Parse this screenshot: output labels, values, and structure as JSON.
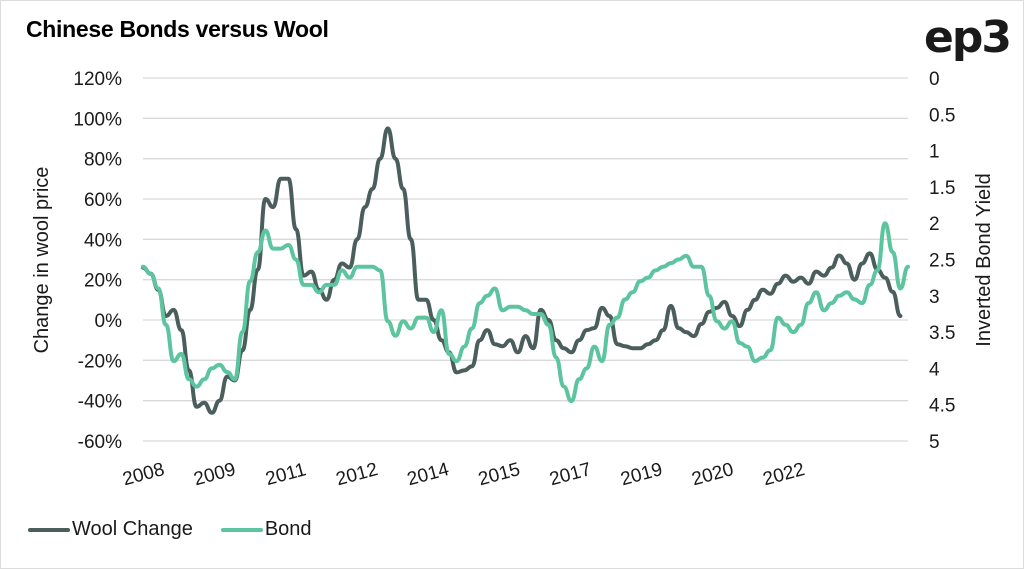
{
  "chart_data": {
    "type": "line",
    "title": "Chinese Bonds versus Wool",
    "logo_text": "ep3",
    "ylabel_left": "Change in wool price",
    "ylabel_right": "Inverted Bond Yield",
    "ylim_left": [
      -60,
      120
    ],
    "ylim_right": [
      5,
      0
    ],
    "left_ticks": [
      "120%",
      "100%",
      "80%",
      "60%",
      "40%",
      "20%",
      "0%",
      "-20%",
      "-40%",
      "-60%"
    ],
    "right_ticks": [
      "0",
      "0.5",
      "1",
      "1.5",
      "2",
      "2.5",
      "3",
      "3.5",
      "4",
      "4.5",
      "5"
    ],
    "x_tick_labels": [
      "2008",
      "2009",
      "2011",
      "2012",
      "2014",
      "2015",
      "2017",
      "2019",
      "2020",
      "2022"
    ],
    "x_range": [
      0,
      100
    ],
    "x_tick_positions": [
      0,
      9.3,
      18.6,
      27.9,
      37.2,
      46.5,
      55.8,
      65.1,
      74.4,
      83.7
    ],
    "grid": true,
    "legend_position": "bottom-left",
    "series": [
      {
        "name": "Wool Change",
        "axis": "left",
        "color": "#4a5e5c",
        "points": [
          [
            0,
            26
          ],
          [
            1,
            23
          ],
          [
            2,
            15
          ],
          [
            3,
            2
          ],
          [
            4,
            5
          ],
          [
            5,
            -5
          ],
          [
            6,
            -25
          ],
          [
            7,
            -43
          ],
          [
            8,
            -41
          ],
          [
            9,
            -46
          ],
          [
            10,
            -40
          ],
          [
            11,
            -28
          ],
          [
            12,
            -30
          ],
          [
            13,
            -15
          ],
          [
            14,
            5
          ],
          [
            15,
            25
          ],
          [
            16,
            60
          ],
          [
            17,
            56
          ],
          [
            18,
            70
          ],
          [
            19,
            70
          ],
          [
            20,
            45
          ],
          [
            21,
            22
          ],
          [
            22,
            24
          ],
          [
            23,
            15
          ],
          [
            24,
            10
          ],
          [
            25,
            20
          ],
          [
            26,
            28
          ],
          [
            27,
            26
          ],
          [
            28,
            40
          ],
          [
            29,
            56
          ],
          [
            30,
            65
          ],
          [
            31,
            80
          ],
          [
            32,
            95
          ],
          [
            33,
            80
          ],
          [
            34,
            65
          ],
          [
            35,
            40
          ],
          [
            36,
            10
          ],
          [
            37,
            10
          ],
          [
            38,
            0
          ],
          [
            39,
            -10
          ],
          [
            40,
            -16
          ],
          [
            41,
            -26
          ],
          [
            42,
            -25
          ],
          [
            43,
            -23
          ],
          [
            44,
            -10
          ],
          [
            45,
            -5
          ],
          [
            46,
            -12
          ],
          [
            47,
            -13
          ],
          [
            48,
            -10
          ],
          [
            49,
            -16
          ],
          [
            50,
            -8
          ],
          [
            51,
            -14
          ],
          [
            52,
            5
          ],
          [
            53,
            0
          ],
          [
            54,
            -10
          ],
          [
            55,
            -14
          ],
          [
            56,
            -16
          ],
          [
            57,
            -10
          ],
          [
            58,
            -5
          ],
          [
            59,
            -4
          ],
          [
            60,
            6
          ],
          [
            61,
            2
          ],
          [
            62,
            -12
          ],
          [
            63,
            -13
          ],
          [
            64,
            -14
          ],
          [
            65,
            -14
          ],
          [
            66,
            -12
          ],
          [
            67,
            -10
          ],
          [
            68,
            -5
          ],
          [
            69,
            7
          ],
          [
            70,
            -4
          ],
          [
            71,
            -6
          ],
          [
            72,
            -8
          ],
          [
            73,
            -2
          ],
          [
            74,
            4
          ],
          [
            75,
            6
          ],
          [
            76,
            9
          ],
          [
            77,
            2
          ],
          [
            78,
            -3
          ],
          [
            79,
            5
          ],
          [
            80,
            10
          ],
          [
            81,
            15
          ],
          [
            82,
            13
          ],
          [
            83,
            18
          ],
          [
            84,
            22
          ],
          [
            85,
            19
          ],
          [
            86,
            21
          ],
          [
            87,
            18
          ],
          [
            88,
            24
          ],
          [
            89,
            22
          ],
          [
            90,
            26
          ],
          [
            91,
            32
          ],
          [
            92,
            28
          ],
          [
            93,
            20
          ],
          [
            94,
            28
          ],
          [
            95,
            33
          ],
          [
            96,
            25
          ],
          [
            97,
            21
          ],
          [
            98,
            14
          ],
          [
            99,
            2
          ]
        ]
      },
      {
        "name": "Bond",
        "axis": "right",
        "color": "#5cc49f",
        "points": [
          [
            0,
            2.6
          ],
          [
            1,
            2.7
          ],
          [
            2,
            2.9
          ],
          [
            3,
            3.4
          ],
          [
            4,
            3.9
          ],
          [
            5,
            3.8
          ],
          [
            6,
            4.15
          ],
          [
            7,
            4.25
          ],
          [
            8,
            4.15
          ],
          [
            9,
            4.0
          ],
          [
            10,
            3.95
          ],
          [
            11,
            4.05
          ],
          [
            12,
            4.15
          ],
          [
            13,
            3.5
          ],
          [
            14,
            2.8
          ],
          [
            15,
            2.4
          ],
          [
            16,
            2.1
          ],
          [
            17,
            2.35
          ],
          [
            18,
            2.35
          ],
          [
            19,
            2.3
          ],
          [
            20,
            2.5
          ],
          [
            21,
            2.85
          ],
          [
            22,
            2.85
          ],
          [
            23,
            2.95
          ],
          [
            24,
            2.85
          ],
          [
            25,
            2.85
          ],
          [
            26,
            2.65
          ],
          [
            27,
            2.75
          ],
          [
            28,
            2.6
          ],
          [
            29,
            2.6
          ],
          [
            30,
            2.6
          ],
          [
            31,
            2.65
          ],
          [
            32,
            3.35
          ],
          [
            33,
            3.55
          ],
          [
            34,
            3.35
          ],
          [
            35,
            3.45
          ],
          [
            36,
            3.3
          ],
          [
            37,
            3.3
          ],
          [
            38,
            3.5
          ],
          [
            39,
            3.2
          ],
          [
            40,
            3.8
          ],
          [
            41,
            3.9
          ],
          [
            42,
            3.7
          ],
          [
            43,
            3.45
          ],
          [
            44,
            3.1
          ],
          [
            45,
            3.0
          ],
          [
            46,
            2.9
          ],
          [
            47,
            3.2
          ],
          [
            48,
            3.15
          ],
          [
            49,
            3.15
          ],
          [
            50,
            3.2
          ],
          [
            51,
            3.25
          ],
          [
            52,
            3.25
          ],
          [
            53,
            3.4
          ],
          [
            54,
            3.85
          ],
          [
            55,
            4.25
          ],
          [
            56,
            4.45
          ],
          [
            57,
            4.15
          ],
          [
            58,
            4.0
          ],
          [
            59,
            3.7
          ],
          [
            60,
            3.9
          ],
          [
            61,
            3.4
          ],
          [
            62,
            3.3
          ],
          [
            63,
            3.05
          ],
          [
            64,
            2.95
          ],
          [
            65,
            2.8
          ],
          [
            66,
            2.75
          ],
          [
            67,
            2.65
          ],
          [
            68,
            2.6
          ],
          [
            69,
            2.55
          ],
          [
            70,
            2.5
          ],
          [
            71,
            2.45
          ],
          [
            72,
            2.6
          ],
          [
            73,
            2.6
          ],
          [
            74,
            3.0
          ],
          [
            75,
            3.35
          ],
          [
            76,
            3.45
          ],
          [
            77,
            3.35
          ],
          [
            78,
            3.65
          ],
          [
            79,
            3.7
          ],
          [
            80,
            3.9
          ],
          [
            81,
            3.85
          ],
          [
            82,
            3.75
          ],
          [
            83,
            3.3
          ],
          [
            84,
            3.4
          ],
          [
            85,
            3.5
          ],
          [
            86,
            3.4
          ],
          [
            87,
            3.1
          ],
          [
            88,
            2.95
          ],
          [
            89,
            3.2
          ],
          [
            90,
            3.1
          ],
          [
            91,
            3.0
          ],
          [
            92,
            2.95
          ],
          [
            93,
            3.05
          ],
          [
            94,
            3.1
          ],
          [
            95,
            2.85
          ],
          [
            96,
            2.65
          ],
          [
            97,
            2.0
          ],
          [
            98,
            2.4
          ],
          [
            99,
            2.9
          ],
          [
            100,
            2.6
          ]
        ]
      }
    ]
  }
}
